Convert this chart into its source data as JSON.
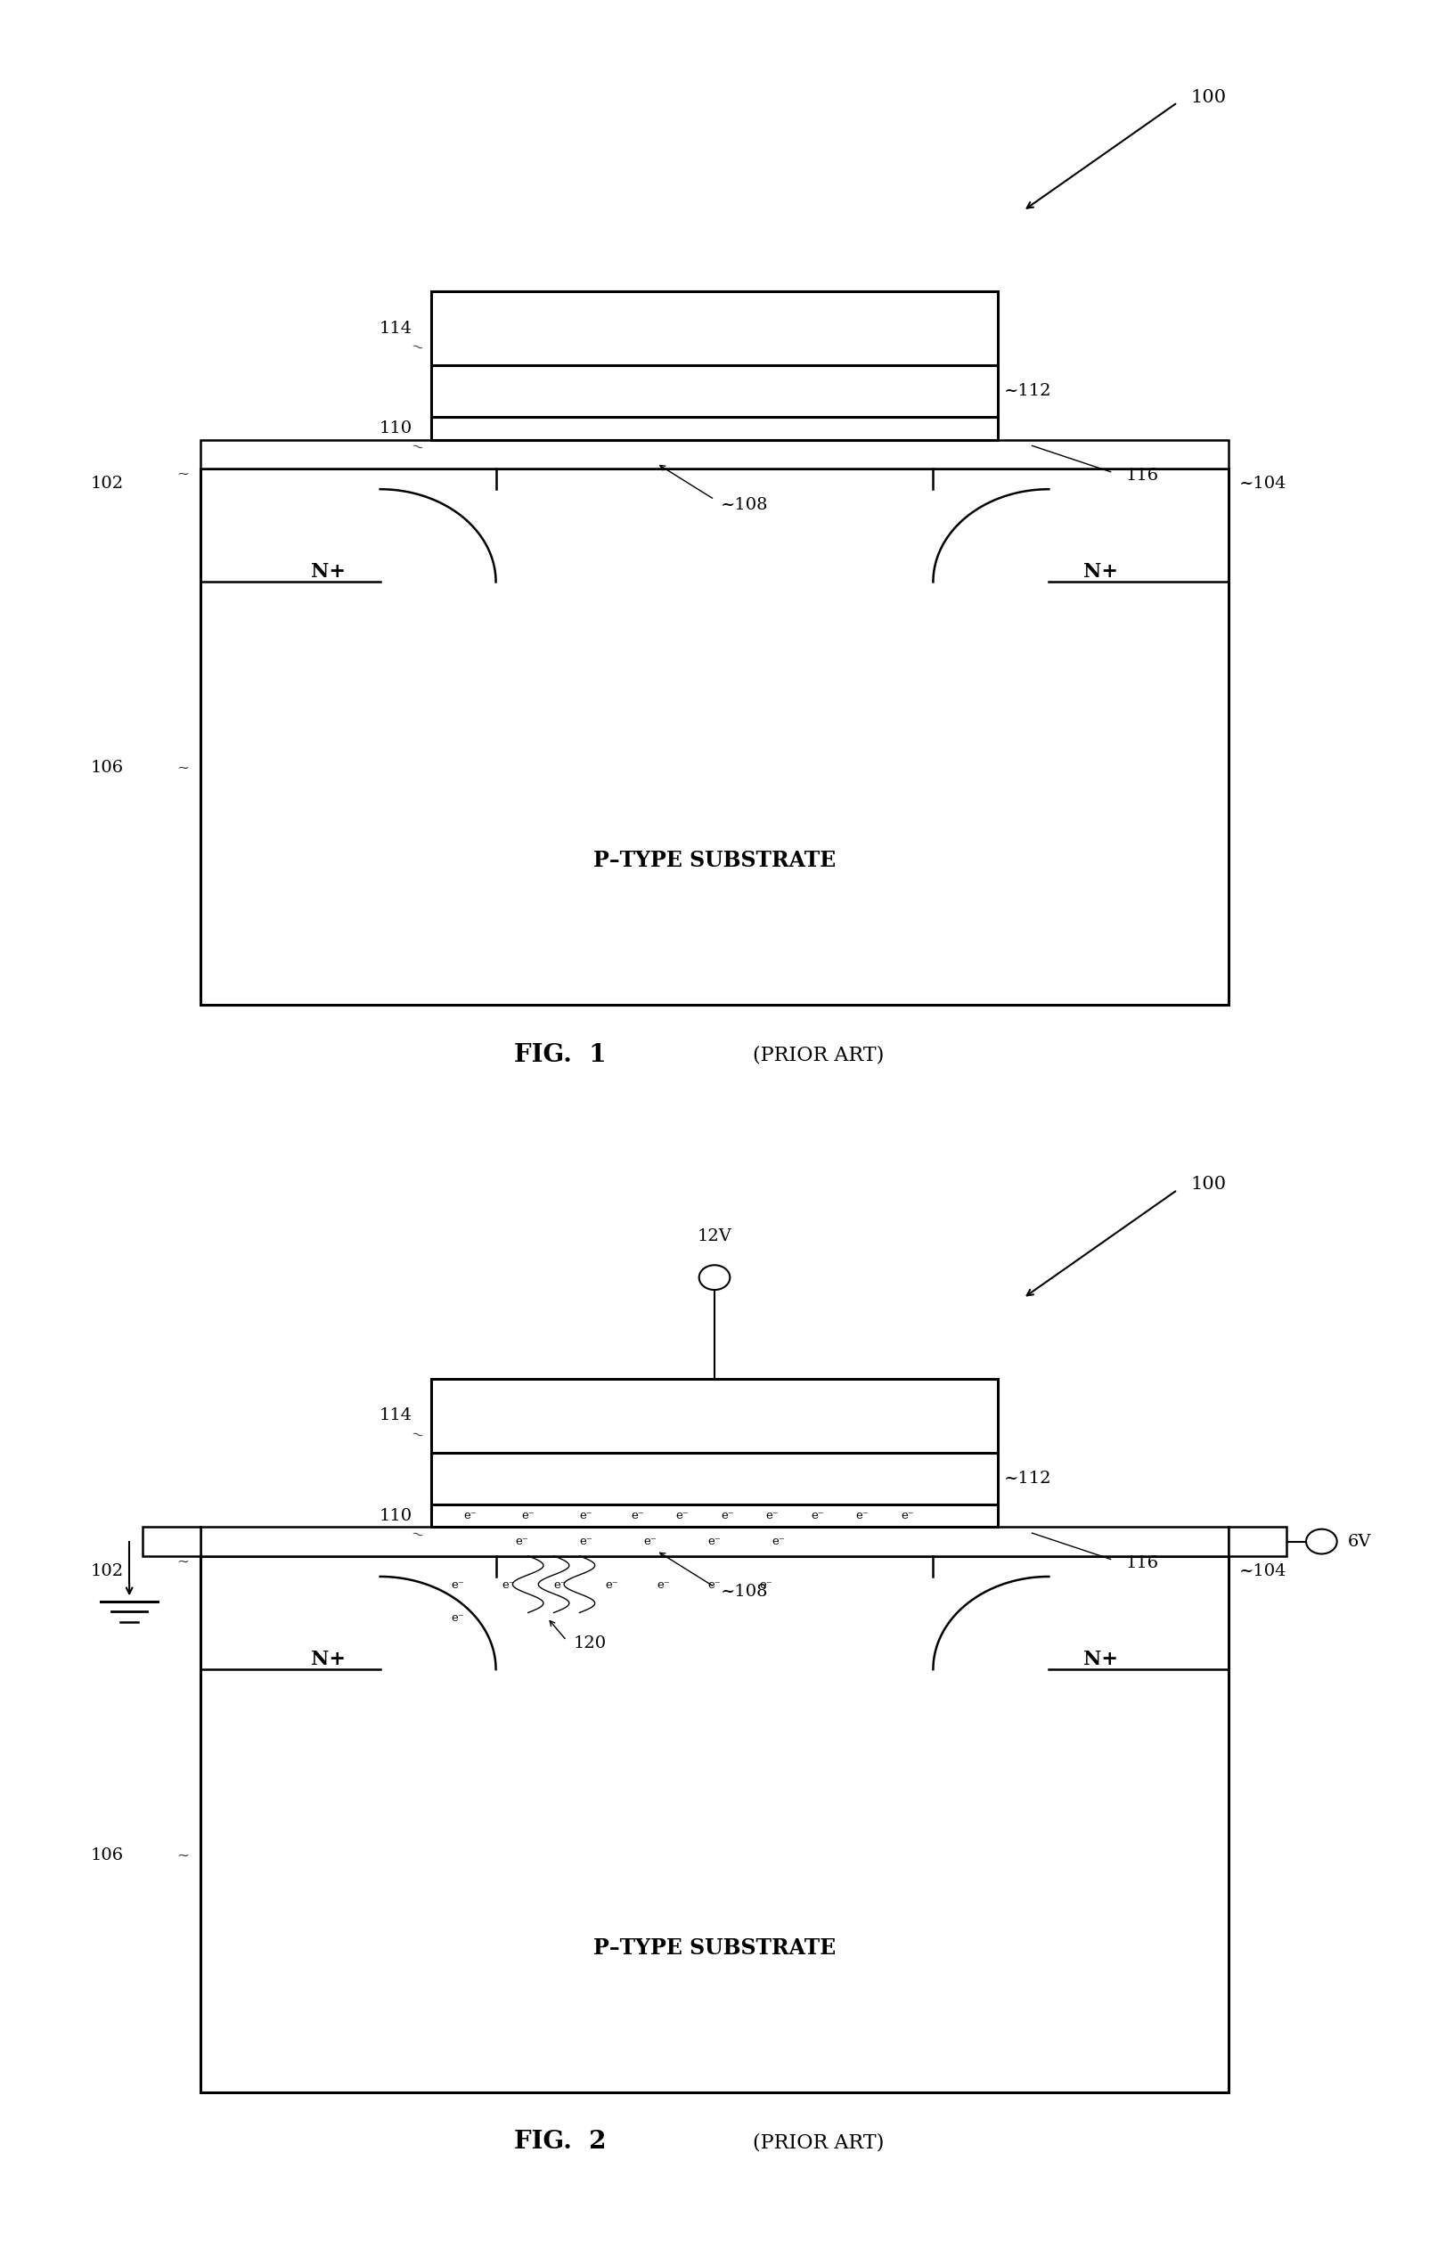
{
  "fig_width": 16.04,
  "fig_height": 25.17,
  "bg_color": "#ffffff",
  "fig1": {
    "title": "FIG.  1",
    "subtitle": "(PRIOR ART)",
    "diagram": {
      "substrate_label": "P–TYPE SUBSTRATE",
      "n_left_label": "N+",
      "n_right_label": "N+",
      "ref_100": "100",
      "ref_102": "102",
      "ref_104": "104",
      "ref_106": "106",
      "ref_108": "108",
      "ref_110": "110",
      "ref_112": "112",
      "ref_114": "114",
      "ref_116": "116"
    }
  },
  "fig2": {
    "title": "FIG.  2",
    "subtitle": "(PRIOR ART)",
    "diagram": {
      "substrate_label": "P–TYPE SUBSTRATE",
      "n_left_label": "N+",
      "n_right_label": "N+",
      "ref_100": "100",
      "ref_102": "102",
      "ref_104": "104",
      "ref_106": "106",
      "ref_108": "108",
      "ref_110": "110",
      "ref_112": "112",
      "ref_114": "114",
      "ref_116": "116",
      "ref_120": "120",
      "voltage_gate": "12V",
      "voltage_drain": "6V"
    }
  }
}
